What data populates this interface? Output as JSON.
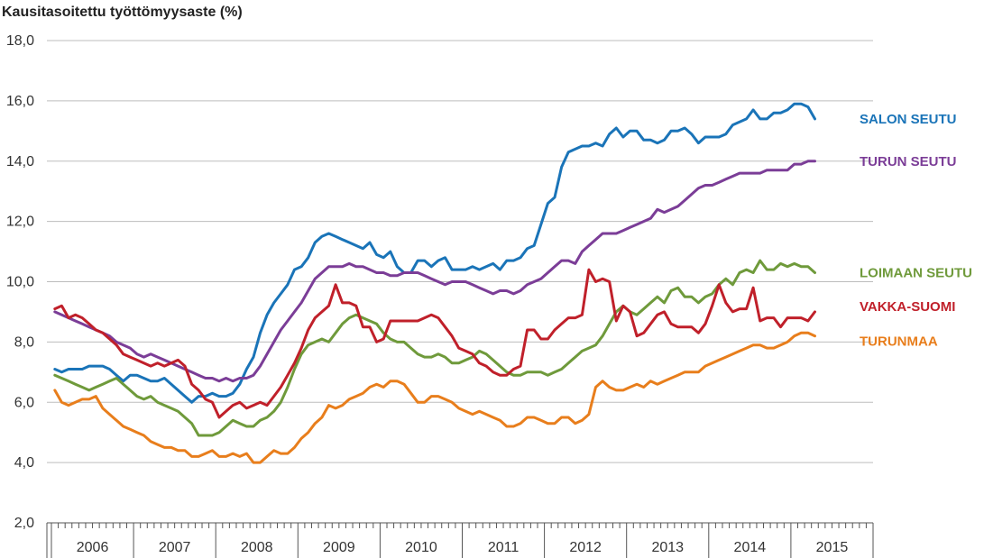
{
  "chart_data": {
    "type": "line",
    "title": "",
    "ylabel": "Kausitasoitettu työttömyysaste (%)",
    "xlabel": "",
    "ylim": [
      2.0,
      18.0
    ],
    "yticks": [
      "2,0",
      "4,0",
      "6,0",
      "8,0",
      "10,0",
      "12,0",
      "14,0",
      "16,0",
      "18,0"
    ],
    "ytick_values": [
      2,
      4,
      6,
      8,
      10,
      12,
      14,
      16,
      18
    ],
    "years": [
      "2006",
      "2007",
      "2008",
      "2009",
      "2010",
      "2011",
      "2012",
      "2013",
      "2014",
      "2015"
    ],
    "x_start": "2006-01",
    "months_per_point": 1,
    "grid": true,
    "series": [
      {
        "name": "SALON SEUTU",
        "color": "#1a74b8",
        "values": [
          7.1,
          7.0,
          7.1,
          7.1,
          7.1,
          7.2,
          7.2,
          7.2,
          7.1,
          6.9,
          6.7,
          6.9,
          6.9,
          6.8,
          6.7,
          6.7,
          6.8,
          6.6,
          6.4,
          6.2,
          6.0,
          6.2,
          6.2,
          6.3,
          6.2,
          6.2,
          6.3,
          6.6,
          7.1,
          7.5,
          8.3,
          8.9,
          9.3,
          9.6,
          9.9,
          10.4,
          10.5,
          10.8,
          11.3,
          11.5,
          11.6,
          11.5,
          11.4,
          11.3,
          11.2,
          11.1,
          11.3,
          10.9,
          10.8,
          11.0,
          10.5,
          10.3,
          10.3,
          10.7,
          10.7,
          10.5,
          10.7,
          10.8,
          10.4,
          10.4,
          10.4,
          10.5,
          10.4,
          10.5,
          10.6,
          10.4,
          10.7,
          10.7,
          10.8,
          11.1,
          11.2,
          11.9,
          12.6,
          12.8,
          13.8,
          14.3,
          14.4,
          14.5,
          14.5,
          14.6,
          14.5,
          14.9,
          15.1,
          14.8,
          15.0,
          15.0,
          14.7,
          14.7,
          14.6,
          14.7,
          15.0,
          15.0,
          15.1,
          14.9,
          14.6,
          14.8,
          14.8,
          14.8,
          14.9,
          15.2,
          15.3,
          15.4,
          15.7,
          15.4,
          15.4,
          15.6,
          15.6,
          15.7,
          15.9,
          15.9,
          15.8,
          15.4
        ]
      },
      {
        "name": "TURUN SEUTU",
        "color": "#7b3d97",
        "values": [
          9.0,
          8.9,
          8.8,
          8.7,
          8.6,
          8.5,
          8.4,
          8.3,
          8.2,
          8.0,
          7.9,
          7.8,
          7.6,
          7.5,
          7.6,
          7.5,
          7.4,
          7.3,
          7.2,
          7.1,
          7.0,
          6.9,
          6.8,
          6.8,
          6.7,
          6.8,
          6.7,
          6.8,
          6.8,
          6.9,
          7.2,
          7.6,
          8.0,
          8.4,
          8.7,
          9.0,
          9.3,
          9.7,
          10.1,
          10.3,
          10.5,
          10.5,
          10.5,
          10.6,
          10.5,
          10.5,
          10.4,
          10.3,
          10.3,
          10.2,
          10.2,
          10.3,
          10.3,
          10.3,
          10.2,
          10.1,
          10.0,
          9.9,
          10.0,
          10.0,
          10.0,
          9.9,
          9.8,
          9.7,
          9.6,
          9.7,
          9.7,
          9.6,
          9.7,
          9.9,
          10.0,
          10.1,
          10.3,
          10.5,
          10.7,
          10.7,
          10.6,
          11.0,
          11.2,
          11.4,
          11.6,
          11.6,
          11.6,
          11.7,
          11.8,
          11.9,
          12.0,
          12.1,
          12.4,
          12.3,
          12.4,
          12.5,
          12.7,
          12.9,
          13.1,
          13.2,
          13.2,
          13.3,
          13.4,
          13.5,
          13.6,
          13.6,
          13.6,
          13.6,
          13.7,
          13.7,
          13.7,
          13.7,
          13.9,
          13.9,
          14.0,
          14.0
        ]
      },
      {
        "name": "LOIMAAN SEUTU",
        "color": "#6f9a3b",
        "values": [
          6.9,
          6.8,
          6.7,
          6.6,
          6.5,
          6.4,
          6.5,
          6.6,
          6.7,
          6.8,
          6.6,
          6.4,
          6.2,
          6.1,
          6.2,
          6.0,
          5.9,
          5.8,
          5.7,
          5.5,
          5.3,
          4.9,
          4.9,
          4.9,
          5.0,
          5.2,
          5.4,
          5.3,
          5.2,
          5.2,
          5.4,
          5.5,
          5.7,
          6.0,
          6.5,
          7.1,
          7.6,
          7.9,
          8.0,
          8.1,
          8.0,
          8.3,
          8.6,
          8.8,
          8.9,
          8.8,
          8.7,
          8.6,
          8.3,
          8.1,
          8.0,
          8.0,
          7.8,
          7.6,
          7.5,
          7.5,
          7.6,
          7.5,
          7.3,
          7.3,
          7.4,
          7.5,
          7.7,
          7.6,
          7.4,
          7.2,
          7.0,
          6.9,
          6.9,
          7.0,
          7.0,
          7.0,
          6.9,
          7.0,
          7.1,
          7.3,
          7.5,
          7.7,
          7.8,
          7.9,
          8.2,
          8.6,
          9.0,
          9.2,
          9.0,
          8.9,
          9.1,
          9.3,
          9.5,
          9.3,
          9.7,
          9.8,
          9.5,
          9.5,
          9.3,
          9.5,
          9.6,
          9.9,
          10.1,
          9.9,
          10.3,
          10.4,
          10.3,
          10.7,
          10.4,
          10.4,
          10.6,
          10.5,
          10.6,
          10.5,
          10.5,
          10.3
        ]
      },
      {
        "name": "VAKKA-SUOMI",
        "color": "#c0202a",
        "values": [
          9.1,
          9.2,
          8.8,
          8.9,
          8.8,
          8.6,
          8.4,
          8.3,
          8.1,
          7.9,
          7.6,
          7.5,
          7.4,
          7.3,
          7.2,
          7.3,
          7.2,
          7.3,
          7.4,
          7.2,
          6.6,
          6.4,
          6.1,
          6.0,
          5.5,
          5.7,
          5.9,
          6.0,
          5.8,
          5.9,
          6.0,
          5.9,
          6.2,
          6.5,
          6.9,
          7.3,
          7.8,
          8.4,
          8.8,
          9.0,
          9.2,
          9.9,
          9.3,
          9.3,
          9.2,
          8.5,
          8.5,
          8.0,
          8.1,
          8.7,
          8.7,
          8.7,
          8.7,
          8.7,
          8.8,
          8.9,
          8.8,
          8.5,
          8.2,
          7.8,
          7.7,
          7.6,
          7.3,
          7.2,
          7.0,
          6.9,
          6.9,
          7.1,
          7.2,
          8.4,
          8.4,
          8.1,
          8.1,
          8.4,
          8.6,
          8.8,
          8.8,
          8.9,
          10.4,
          10.0,
          10.1,
          10.0,
          8.7,
          9.2,
          9.0,
          8.2,
          8.3,
          8.6,
          8.9,
          9.0,
          8.6,
          8.5,
          8.5,
          8.5,
          8.3,
          8.6,
          9.2,
          9.9,
          9.3,
          9.0,
          9.1,
          9.1,
          9.8,
          8.7,
          8.8,
          8.8,
          8.5,
          8.8,
          8.8,
          8.8,
          8.7,
          9.0
        ]
      },
      {
        "name": "TURUNMAA",
        "color": "#e87e1c",
        "values": [
          6.4,
          6.0,
          5.9,
          6.0,
          6.1,
          6.1,
          6.2,
          5.8,
          5.6,
          5.4,
          5.2,
          5.1,
          5.0,
          4.9,
          4.7,
          4.6,
          4.5,
          4.5,
          4.4,
          4.4,
          4.2,
          4.2,
          4.3,
          4.4,
          4.2,
          4.2,
          4.3,
          4.2,
          4.3,
          4.0,
          4.0,
          4.2,
          4.4,
          4.3,
          4.3,
          4.5,
          4.8,
          5.0,
          5.3,
          5.5,
          5.9,
          5.8,
          5.9,
          6.1,
          6.2,
          6.3,
          6.5,
          6.6,
          6.5,
          6.7,
          6.7,
          6.6,
          6.3,
          6.0,
          6.0,
          6.2,
          6.2,
          6.1,
          6.0,
          5.8,
          5.7,
          5.6,
          5.7,
          5.6,
          5.5,
          5.4,
          5.2,
          5.2,
          5.3,
          5.5,
          5.5,
          5.4,
          5.3,
          5.3,
          5.5,
          5.5,
          5.3,
          5.4,
          5.6,
          6.5,
          6.7,
          6.5,
          6.4,
          6.4,
          6.5,
          6.6,
          6.5,
          6.7,
          6.6,
          6.7,
          6.8,
          6.9,
          7.0,
          7.0,
          7.0,
          7.2,
          7.3,
          7.4,
          7.5,
          7.6,
          7.7,
          7.8,
          7.9,
          7.9,
          7.8,
          7.8,
          7.9,
          8.0,
          8.2,
          8.3,
          8.3,
          8.2
        ]
      }
    ]
  }
}
